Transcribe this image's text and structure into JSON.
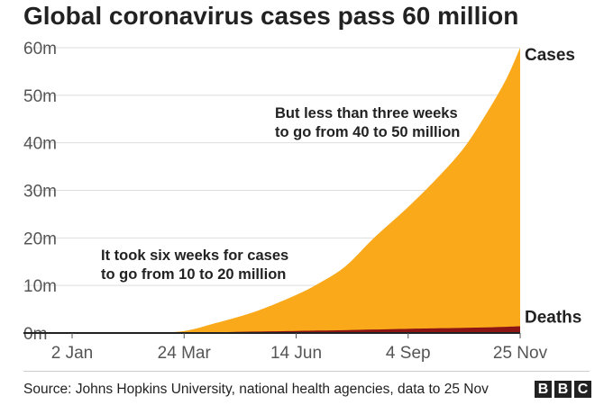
{
  "title": "Global coronavirus cases pass 60 million",
  "source": "Source: Johns Hopkins University, national health agencies, data to 25 Nov",
  "logo_letters": [
    "B",
    "B",
    "C"
  ],
  "chart_data": {
    "type": "area",
    "x_axis_type": "date",
    "x": [
      "2020-01-02",
      "2020-02-01",
      "2020-03-01",
      "2020-03-24",
      "2020-04-15",
      "2020-05-15",
      "2020-06-14",
      "2020-07-01",
      "2020-07-20",
      "2020-08-10",
      "2020-09-04",
      "2020-09-25",
      "2020-10-15",
      "2020-11-01",
      "2020-11-15",
      "2020-11-25"
    ],
    "xticks": [
      {
        "date": "2020-01-02",
        "label": "2 Jan"
      },
      {
        "date": "2020-03-24",
        "label": "24 Mar"
      },
      {
        "date": "2020-06-14",
        "label": "14 Jun"
      },
      {
        "date": "2020-09-04",
        "label": "4 Sep"
      },
      {
        "date": "2020-11-25",
        "label": "25 Nov"
      }
    ],
    "yticks": [
      {
        "value": 0,
        "label": "0m"
      },
      {
        "value": 10,
        "label": "10m"
      },
      {
        "value": 20,
        "label": "20m"
      },
      {
        "value": 30,
        "label": "30m"
      },
      {
        "value": 40,
        "label": "40m"
      },
      {
        "value": 50,
        "label": "50m"
      },
      {
        "value": 60,
        "label": "60m"
      }
    ],
    "ylim": [
      0,
      60
    ],
    "y_unit": "millions",
    "grid": true,
    "series": [
      {
        "name": "Cases",
        "color": "#f9a91a",
        "values": [
          0.001,
          0.01,
          0.09,
          0.4,
          2.0,
          4.5,
          8.0,
          10.5,
          14.0,
          20.0,
          26.5,
          32.5,
          39.0,
          46.5,
          53.5,
          60.0
        ]
      },
      {
        "name": "Deaths",
        "color": "#8b1414",
        "values": [
          0,
          0.0003,
          0.003,
          0.02,
          0.13,
          0.3,
          0.43,
          0.51,
          0.6,
          0.73,
          0.88,
          0.99,
          1.09,
          1.19,
          1.3,
          1.41
        ]
      }
    ],
    "annotations": [
      {
        "lines": [
          "It took six weeks for cases",
          "to go from 10 to 20 million"
        ]
      },
      {
        "lines": [
          "But less than three weeks",
          "to go from 40 to 50 million"
        ]
      }
    ]
  }
}
